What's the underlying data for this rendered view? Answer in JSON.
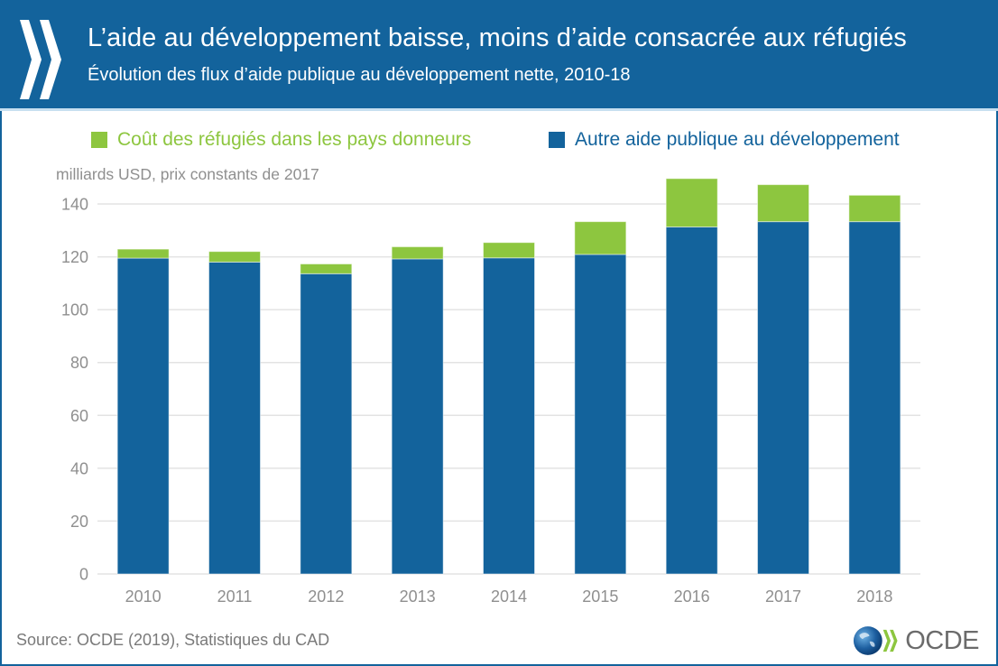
{
  "header": {
    "title": "L’aide au développement baisse, moins d’aide consacrée aux réfugiés",
    "subtitle": "Évolution des flux d’aide publique au développement nette, 2010-18",
    "icon": "oecd-chevrons-icon"
  },
  "colors": {
    "header_bg": "#13639c",
    "series_refugees": "#8dc63f",
    "series_other": "#13639c",
    "gridline": "#e3e3e3",
    "axis_text": "#8f8f8f"
  },
  "footer": {
    "source": "Source: OCDE (2019), Statistiques du CAD",
    "logo_text": "OCDE"
  },
  "chart_data": {
    "type": "bar",
    "stacked": true,
    "title": "L’aide au développement baisse, moins d’aide consacrée aux réfugiés",
    "subtitle": "Évolution des flux d’aide publique au développement nette, 2010-18",
    "xlabel": "",
    "ylabel": "milliards USD, prix constants de 2017",
    "ylim": [
      0,
      140
    ],
    "yticks": [
      0,
      20,
      40,
      60,
      80,
      100,
      120,
      140
    ],
    "grid": true,
    "legend_position": "top",
    "categories": [
      "2010",
      "2011",
      "2012",
      "2013",
      "2014",
      "2015",
      "2016",
      "2017",
      "2018"
    ],
    "series": [
      {
        "name": "Autre aide publique au développement",
        "color": "#13639c",
        "values": [
          119.5,
          118.0,
          113.6,
          119.2,
          119.6,
          120.9,
          131.3,
          133.3,
          133.3
        ]
      },
      {
        "name": "Coût des réfugiés dans les pays donneurs",
        "color": "#8dc63f",
        "values": [
          3.4,
          4.0,
          3.7,
          4.6,
          5.8,
          12.4,
          18.3,
          14.0,
          10.0
        ]
      }
    ],
    "legend": [
      {
        "label": "Coût des réfugiés dans les pays donneurs",
        "color": "#8dc63f"
      },
      {
        "label": "Autre aide publique au développement",
        "color": "#13639c"
      }
    ]
  }
}
